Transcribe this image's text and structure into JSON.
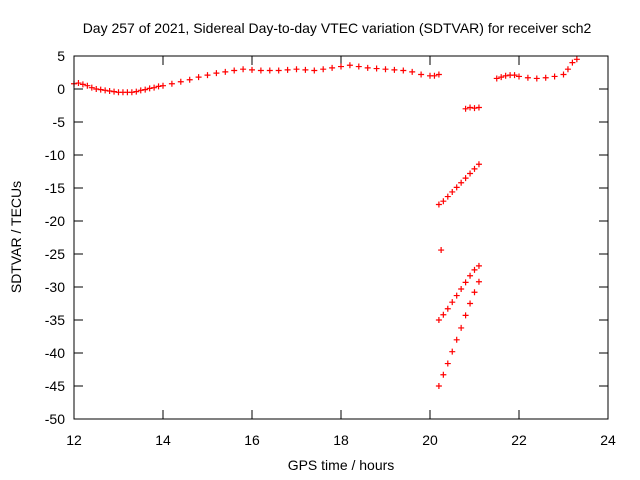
{
  "chart_data": {
    "type": "scatter",
    "title": "Day 257 of 2021, Sidereal Day-to-day VTEC variation (SDTVAR) for receiver sch2",
    "xlabel": "GPS time / hours",
    "ylabel": "SDTVAR / TECUs",
    "xlim": [
      12,
      24
    ],
    "ylim": [
      -50,
      5
    ],
    "xticks": [
      12,
      14,
      16,
      18,
      20,
      22,
      24
    ],
    "yticks": [
      5,
      0,
      -5,
      -10,
      -15,
      -20,
      -25,
      -30,
      -35,
      -40,
      -45,
      -50
    ],
    "grid": false,
    "marker": "plus",
    "color": "#ff0000",
    "series": [
      {
        "values": [
          [
            12.0,
            0.8
          ],
          [
            12.1,
            0.9
          ],
          [
            12.2,
            0.7
          ],
          [
            12.3,
            0.5
          ],
          [
            12.4,
            0.2
          ],
          [
            12.5,
            0.0
          ],
          [
            12.6,
            -0.1
          ],
          [
            12.7,
            -0.2
          ],
          [
            12.8,
            -0.3
          ],
          [
            12.9,
            -0.4
          ],
          [
            13.0,
            -0.5
          ],
          [
            13.1,
            -0.5
          ],
          [
            13.2,
            -0.5
          ],
          [
            13.3,
            -0.5
          ],
          [
            13.4,
            -0.4
          ],
          [
            13.5,
            -0.2
          ],
          [
            13.6,
            -0.1
          ],
          [
            13.7,
            0.1
          ],
          [
            13.8,
            0.2
          ],
          [
            13.9,
            0.4
          ],
          [
            14.0,
            0.5
          ],
          [
            14.2,
            0.8
          ],
          [
            14.4,
            1.1
          ],
          [
            14.6,
            1.4
          ],
          [
            14.8,
            1.8
          ],
          [
            15.0,
            2.1
          ],
          [
            15.2,
            2.4
          ],
          [
            15.4,
            2.6
          ],
          [
            15.6,
            2.8
          ],
          [
            15.8,
            3.0
          ],
          [
            16.0,
            2.9
          ],
          [
            16.2,
            2.8
          ],
          [
            16.4,
            2.8
          ],
          [
            16.6,
            2.8
          ],
          [
            16.8,
            2.9
          ],
          [
            17.0,
            3.0
          ],
          [
            17.2,
            2.9
          ],
          [
            17.4,
            2.8
          ],
          [
            17.6,
            3.0
          ],
          [
            17.8,
            3.2
          ],
          [
            18.0,
            3.4
          ],
          [
            18.2,
            3.6
          ],
          [
            18.4,
            3.4
          ],
          [
            18.6,
            3.2
          ],
          [
            18.8,
            3.1
          ],
          [
            19.0,
            3.0
          ],
          [
            19.2,
            2.9
          ],
          [
            19.4,
            2.8
          ],
          [
            19.6,
            2.6
          ],
          [
            19.8,
            2.2
          ],
          [
            20.0,
            2.0
          ],
          [
            20.1,
            2.0
          ],
          [
            20.2,
            2.2
          ],
          [
            20.2,
            -17.5
          ],
          [
            20.3,
            -17.0
          ],
          [
            20.4,
            -16.3
          ],
          [
            20.5,
            -15.6
          ],
          [
            20.6,
            -14.9
          ],
          [
            20.7,
            -14.2
          ],
          [
            20.8,
            -13.5
          ],
          [
            20.9,
            -12.8
          ],
          [
            21.0,
            -12.1
          ],
          [
            21.1,
            -11.4
          ],
          [
            20.25,
            -24.4
          ],
          [
            20.2,
            -35.0
          ],
          [
            20.3,
            -34.2
          ],
          [
            20.4,
            -33.3
          ],
          [
            20.5,
            -32.3
          ],
          [
            20.6,
            -31.3
          ],
          [
            20.7,
            -30.3
          ],
          [
            20.8,
            -29.3
          ],
          [
            20.9,
            -28.3
          ],
          [
            21.0,
            -27.4
          ],
          [
            21.1,
            -26.8
          ],
          [
            20.2,
            -45.0
          ],
          [
            20.3,
            -43.3
          ],
          [
            20.4,
            -41.6
          ],
          [
            20.5,
            -39.8
          ],
          [
            20.6,
            -38.0
          ],
          [
            20.7,
            -36.2
          ],
          [
            20.8,
            -34.3
          ],
          [
            20.9,
            -32.5
          ],
          [
            21.0,
            -30.8
          ],
          [
            21.1,
            -29.2
          ],
          [
            20.8,
            -3.0
          ],
          [
            20.9,
            -2.8
          ],
          [
            21.0,
            -2.9
          ],
          [
            21.1,
            -2.8
          ],
          [
            21.5,
            1.6
          ],
          [
            21.6,
            1.8
          ],
          [
            21.7,
            2.0
          ],
          [
            21.8,
            2.1
          ],
          [
            21.9,
            2.1
          ],
          [
            22.0,
            1.9
          ],
          [
            22.2,
            1.7
          ],
          [
            22.4,
            1.6
          ],
          [
            22.6,
            1.7
          ],
          [
            22.8,
            1.9
          ],
          [
            23.0,
            2.2
          ],
          [
            23.1,
            3.0
          ],
          [
            23.2,
            4.0
          ],
          [
            23.3,
            4.5
          ]
        ]
      }
    ]
  }
}
